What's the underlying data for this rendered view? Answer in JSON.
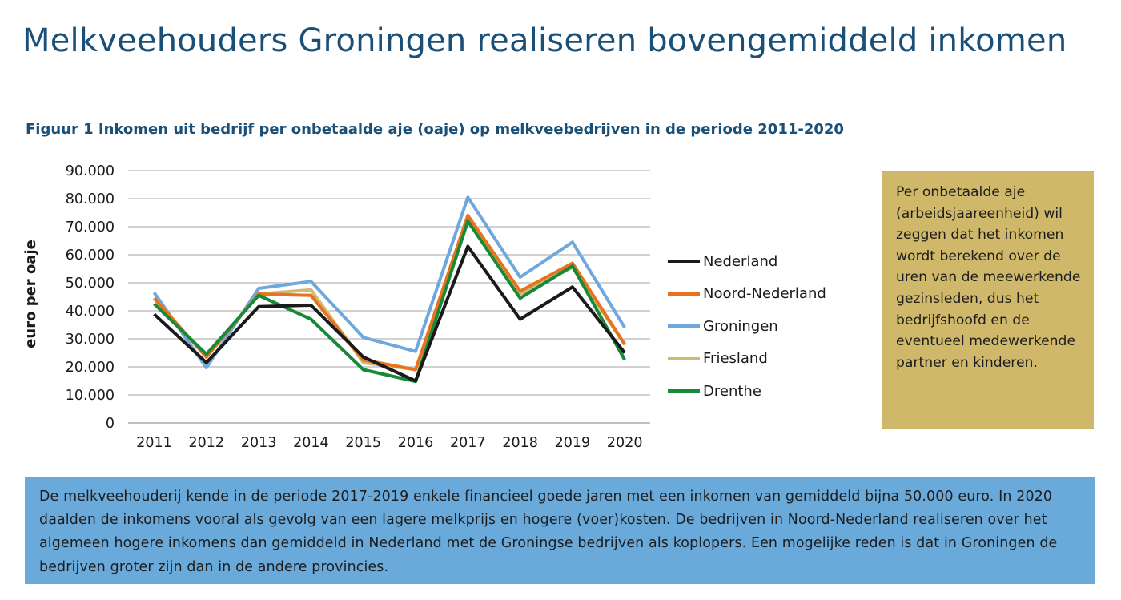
{
  "page": {
    "title": "Melkveehouders Groningen realiseren bovengemiddeld inkomen",
    "figure_caption": "Figuur 1 Inkomen uit bedrijf per onbetaalde aje (oaje) op melkveebedrijven in de periode 2011-2020"
  },
  "chart_data": {
    "type": "line",
    "title": "Figuur 1 Inkomen uit bedrijf per onbetaalde aje (oaje) op melkveebedrijven in de periode 2011-2020",
    "xlabel": "",
    "ylabel": "euro per oaje",
    "x": [
      "2011",
      "2012",
      "2013",
      "2014",
      "2015",
      "2016",
      "2017",
      "2018",
      "2019",
      "2020"
    ],
    "ylim": [
      0,
      90000
    ],
    "yticks": [
      "0",
      "10.000",
      "20.000",
      "30.000",
      "40.000",
      "50.000",
      "60.000",
      "70.000",
      "80.000",
      "90.000"
    ],
    "grid": true,
    "legend_position": "right",
    "series": [
      {
        "name": "Nederland",
        "color": "#1a1a1a",
        "values": [
          38800,
          21500,
          41500,
          42000,
          23500,
          15000,
          63000,
          37000,
          48500,
          25000
        ]
      },
      {
        "name": "Noord-Nederland",
        "color": "#e8731f",
        "values": [
          44500,
          23500,
          46000,
          45500,
          22500,
          19000,
          74000,
          47000,
          57000,
          28000
        ]
      },
      {
        "name": "Groningen",
        "color": "#6fa8dc",
        "values": [
          46500,
          19700,
          48000,
          50500,
          30500,
          25500,
          80500,
          52000,
          64500,
          34000
        ]
      },
      {
        "name": "Friesland",
        "color": "#d1b874",
        "values": [
          44500,
          23500,
          46000,
          47500,
          21500,
          19000,
          72000,
          46000,
          55500,
          28000
        ]
      },
      {
        "name": "Drenthe",
        "color": "#178a39",
        "values": [
          42500,
          24500,
          45500,
          37000,
          19000,
          14800,
          72000,
          44500,
          56000,
          22500
        ]
      }
    ]
  },
  "note": {
    "text": "Per onbetaalde aje (arbeidsjaareenheid) wil zeggen dat het inkomen wordt berekend over de uren van de meewerkende gezinsleden, dus het bedrijfshoofd en de eventueel medewerkende partner en kinderen."
  },
  "summary": {
    "text": "De melkveehouderij kende in de periode 2017-2019 enkele financieel goede jaren met een inkomen van gemiddeld bijna 50.000 euro. In 2020 daalden de inkomens vooral als gevolg van een lagere melkprijs en hogere (voer)kosten. De bedrijven in Noord-Nederland realiseren over het algemeen hogere inkomens dan gemiddeld in Nederland met de Groningse bedrijven als koplopers. Een mogelijke reden is dat in Groningen de bedrijven groter zijn dan in de andere provincies."
  },
  "colors": {
    "title": "#1a5077",
    "note_background": "#d0b86a",
    "summary_background": "#6aaadb",
    "gridline": "#a6a6a6"
  }
}
